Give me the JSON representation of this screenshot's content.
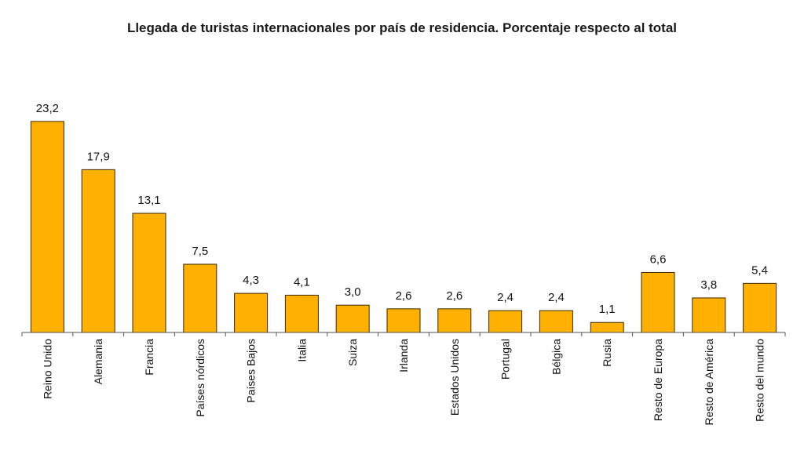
{
  "chart_data": {
    "type": "bar",
    "title": "Llegada de turistas internacionales por país de residencia. Porcentaje respecto al total",
    "xlabel": "",
    "ylabel": "",
    "ylim": [
      0,
      25
    ],
    "grid": false,
    "bar_color": "#FFB000",
    "categories": [
      "Reino Unido",
      "Alemania",
      "Francia",
      "Países nórdicos",
      "Países Bajos",
      "Italia",
      "Suiza",
      "Irlanda",
      "Estados Unidos",
      "Portugal",
      "Bélgica",
      "Rusia",
      "Resto de Europa",
      "Resto de América",
      "Resto del mundo"
    ],
    "values": [
      23.2,
      17.9,
      13.1,
      7.5,
      4.3,
      4.1,
      3.0,
      2.6,
      2.6,
      2.4,
      2.4,
      1.1,
      6.6,
      3.8,
      5.4
    ],
    "value_labels": [
      "23,2",
      "17,9",
      "13,1",
      "7,5",
      "4,3",
      "4,1",
      "3,0",
      "2,6",
      "2,6",
      "2,4",
      "2,4",
      "1,1",
      "6,6",
      "3,8",
      "5,4"
    ]
  }
}
